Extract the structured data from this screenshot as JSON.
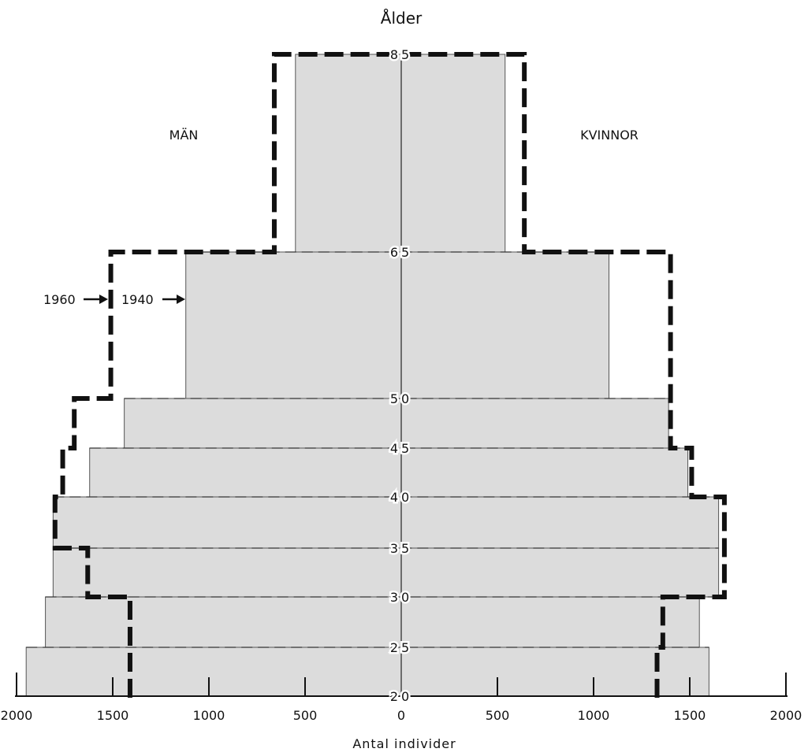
{
  "chart_data": {
    "type": "bar",
    "subtype": "population-pyramid",
    "ylabel": "Ålder",
    "xlabel": "Antal individer",
    "left_label": "MÄN",
    "right_label": "KVINNOR",
    "age_ticks": [
      "20",
      "25",
      "30",
      "35",
      "40",
      "45",
      "50",
      "65",
      "85"
    ],
    "x_ticks": [
      "2000",
      "1500",
      "1000",
      "500",
      "0",
      "500",
      "1000",
      "1500",
      "2000"
    ],
    "xlim": [
      -2000,
      2000
    ],
    "age_groups": [
      {
        "from": 20,
        "to": 25
      },
      {
        "from": 25,
        "to": 30
      },
      {
        "from": 30,
        "to": 35
      },
      {
        "from": 35,
        "to": 40
      },
      {
        "from": 40,
        "to": 45
      },
      {
        "from": 45,
        "to": 50
      },
      {
        "from": 50,
        "to": 65
      },
      {
        "from": 65,
        "to": 85
      }
    ],
    "series": [
      {
        "name": "1940",
        "style": "shaded-bars",
        "men": [
          1950,
          1850,
          1810,
          1810,
          1620,
          1440,
          1120,
          550
        ],
        "women": [
          1600,
          1550,
          1650,
          1650,
          1490,
          1390,
          1080,
          540
        ]
      },
      {
        "name": "1960",
        "style": "dashed-outline",
        "men": [
          1410,
          1410,
          1630,
          1800,
          1760,
          1700,
          1510,
          660
        ],
        "women": [
          1330,
          1360,
          1680,
          1680,
          1510,
          1400,
          1400,
          640
        ]
      }
    ],
    "annotations": [
      {
        "text": "1960",
        "points_to": "1960"
      },
      {
        "text": "1940",
        "points_to": "1940"
      }
    ],
    "colors": {
      "fill_1940": "#dcdcdc",
      "edge_1940": "#555555",
      "outline_1960": "#111111"
    }
  }
}
